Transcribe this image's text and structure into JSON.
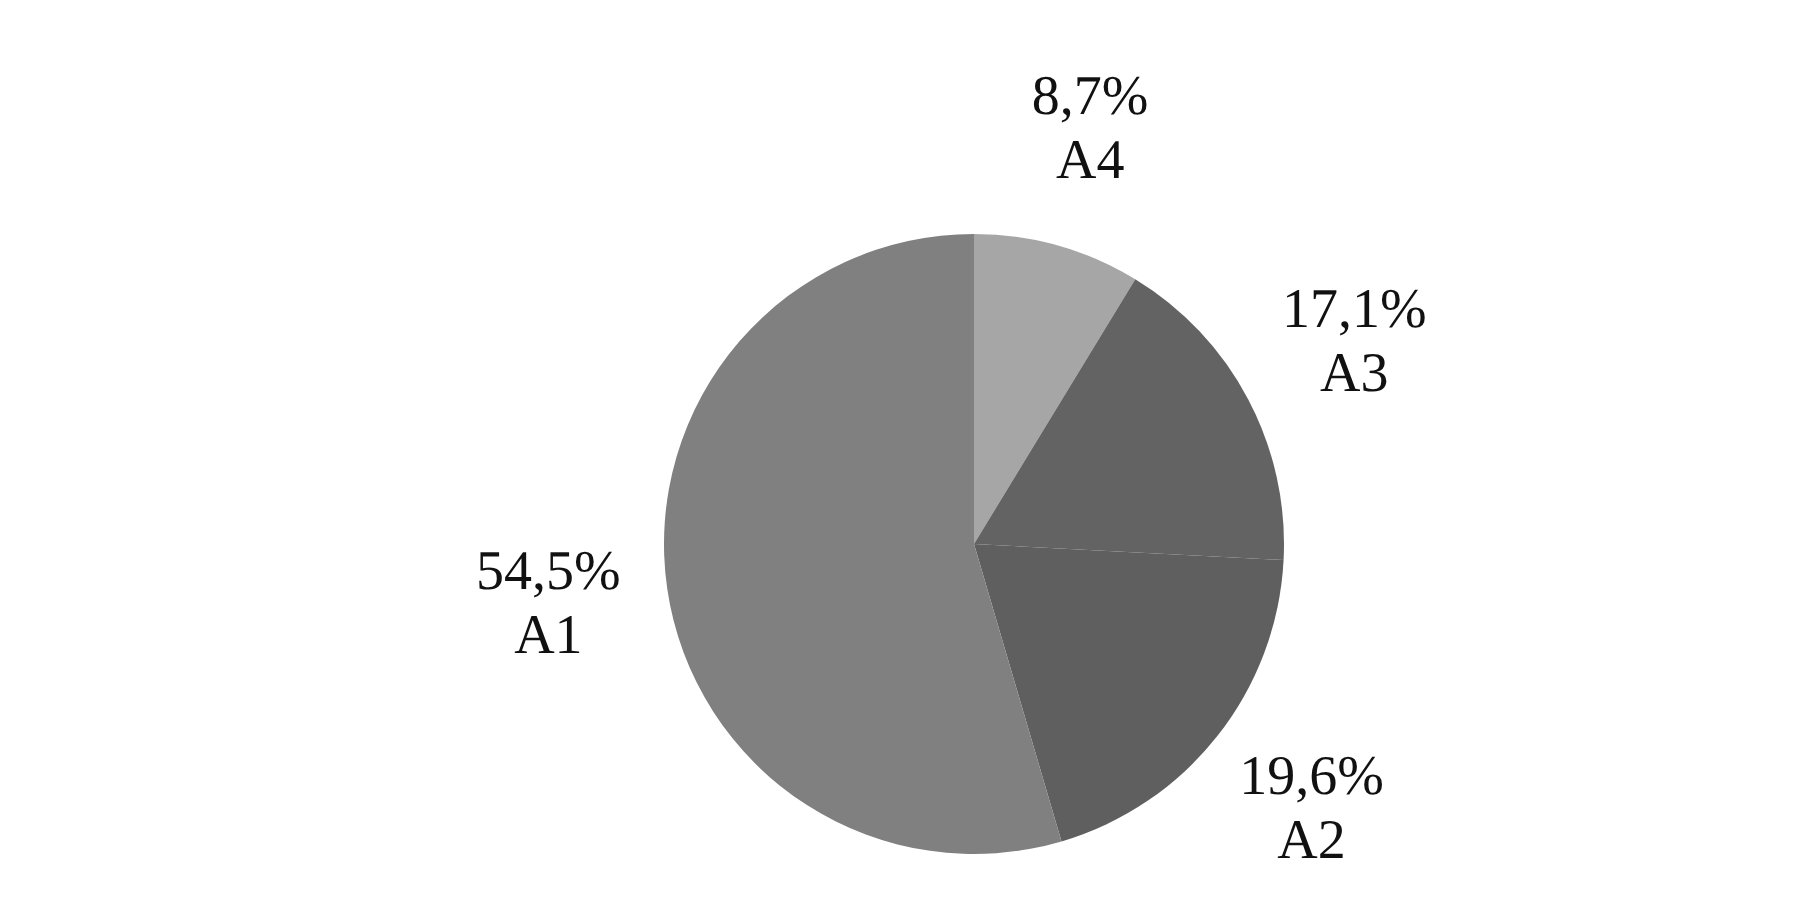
{
  "chart_data": {
    "type": "pie",
    "categories": [
      "A4",
      "A3",
      "A2",
      "A1"
    ],
    "values": [
      8.7,
      17.1,
      19.6,
      54.5
    ],
    "value_labels": [
      "8,7%",
      "17,1%",
      "19,6%",
      "54,5%"
    ],
    "colors": [
      "#a6a6a6",
      "#636363",
      "#5f5f5f",
      "#808080"
    ]
  }
}
